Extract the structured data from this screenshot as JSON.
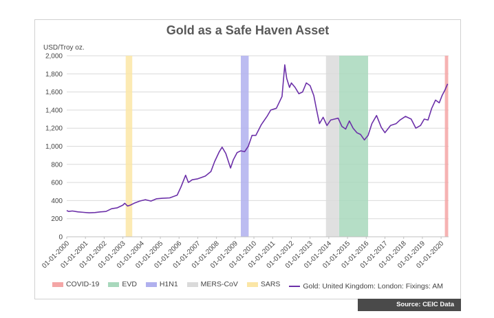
{
  "chart_data": {
    "type": "line",
    "title": "Gold as a Safe Haven Asset",
    "ylabel": "USD/Troy oz.",
    "xlabel": "",
    "ylim": [
      0,
      2000
    ],
    "yticks": [
      "0",
      "200",
      "400",
      "600",
      "800",
      "1,000",
      "1,200",
      "1,400",
      "1,600",
      "1,800",
      "2,000"
    ],
    "yticks_values": [
      0,
      200,
      400,
      600,
      800,
      1000,
      1200,
      1400,
      1600,
      1800,
      2000
    ],
    "xlim": [
      2000.0,
      2020.4
    ],
    "xtick_labels": [
      "01-01-2000",
      "01-01-2001",
      "01-01-2002",
      "01-01-2003",
      "01-01-2004",
      "01-01-2005",
      "01-01-2006",
      "01-01-2007",
      "01-01-2008",
      "01-01-2009",
      "01-01-2010",
      "01-01-2011",
      "01-01-2012",
      "01-01-2013",
      "01-01-2014",
      "01-01-2015",
      "01-01-2016",
      "01-01-2017",
      "01-01-2018",
      "01-01-2019",
      "01-01-2020"
    ],
    "xtick_years": [
      2000,
      2001,
      2002,
      2003,
      2004,
      2005,
      2006,
      2007,
      2008,
      2009,
      2010,
      2011,
      2012,
      2013,
      2014,
      2015,
      2016,
      2017,
      2018,
      2019,
      2020
    ],
    "periods": [
      {
        "name": "COVID-19",
        "start": 2020.2,
        "end": 2020.38,
        "color": "#f4a6a6"
      },
      {
        "name": "EVD",
        "start": 2014.55,
        "end": 2016.1,
        "color": "#a8d8bc"
      },
      {
        "name": "H1N1",
        "start": 2009.3,
        "end": 2009.72,
        "color": "#b0b0ee"
      },
      {
        "name": "MERS-CoV",
        "start": 2013.85,
        "end": 2014.55,
        "color": "#dadada"
      },
      {
        "name": "SARS",
        "start": 2003.15,
        "end": 2003.5,
        "color": "#fbe6a6"
      }
    ],
    "series": [
      {
        "name": "Gold: United Kingdom: London: Fixings: AM",
        "color": "#6b2fa8",
        "x": [
          2000.0,
          2000.1,
          2000.3,
          2000.6,
          2000.9,
          2001.2,
          2001.5,
          2001.8,
          2002.1,
          2002.4,
          2002.7,
          2003.0,
          2003.1,
          2003.25,
          2003.4,
          2003.6,
          2003.9,
          2004.2,
          2004.5,
          2004.8,
          2005.1,
          2005.5,
          2005.9,
          2006.1,
          2006.35,
          2006.5,
          2006.7,
          2007.0,
          2007.4,
          2007.7,
          2007.9,
          2008.15,
          2008.3,
          2008.5,
          2008.75,
          2008.9,
          2009.1,
          2009.3,
          2009.5,
          2009.7,
          2009.9,
          2010.1,
          2010.4,
          2010.7,
          2010.9,
          2011.2,
          2011.5,
          2011.65,
          2011.75,
          2011.9,
          2012.0,
          2012.2,
          2012.4,
          2012.6,
          2012.8,
          2013.0,
          2013.2,
          2013.35,
          2013.5,
          2013.7,
          2013.9,
          2014.1,
          2014.3,
          2014.5,
          2014.7,
          2014.9,
          2015.1,
          2015.3,
          2015.5,
          2015.7,
          2015.9,
          2016.1,
          2016.3,
          2016.55,
          2016.8,
          2017.0,
          2017.3,
          2017.6,
          2017.8,
          2018.1,
          2018.4,
          2018.65,
          2018.9,
          2019.1,
          2019.3,
          2019.5,
          2019.7,
          2019.9,
          2020.05,
          2020.2,
          2020.35
        ],
        "values": [
          290,
          280,
          285,
          275,
          270,
          265,
          268,
          275,
          280,
          310,
          320,
          350,
          370,
          340,
          350,
          370,
          395,
          410,
          395,
          420,
          425,
          430,
          460,
          550,
          680,
          600,
          630,
          640,
          670,
          720,
          830,
          940,
          990,
          920,
          760,
          850,
          930,
          950,
          940,
          1000,
          1120,
          1120,
          1240,
          1330,
          1400,
          1420,
          1550,
          1900,
          1750,
          1650,
          1700,
          1650,
          1580,
          1600,
          1700,
          1670,
          1560,
          1400,
          1250,
          1320,
          1230,
          1290,
          1300,
          1310,
          1220,
          1190,
          1280,
          1200,
          1150,
          1130,
          1070,
          1120,
          1250,
          1340,
          1210,
          1150,
          1230,
          1250,
          1290,
          1330,
          1300,
          1200,
          1230,
          1300,
          1290,
          1420,
          1510,
          1480,
          1560,
          1620,
          1690
        ]
      }
    ],
    "legend_position": "bottom"
  },
  "source": "Source: CEIC Data"
}
